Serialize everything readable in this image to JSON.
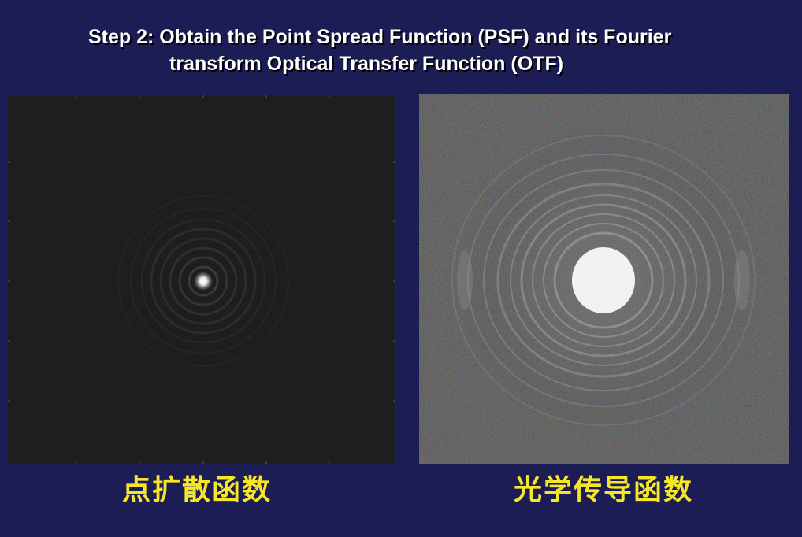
{
  "slide": {
    "title_line1": "Step 2: Obtain the Point Spread Function (PSF) and its Fourier",
    "title_line2": "transform Optical Transfer Function (OTF)",
    "caption_psf": "点扩散函数",
    "caption_otf": "光学传导函数"
  },
  "colors": {
    "background": "#1b1d54",
    "title": "#ffffff",
    "caption": "#f5e629"
  }
}
